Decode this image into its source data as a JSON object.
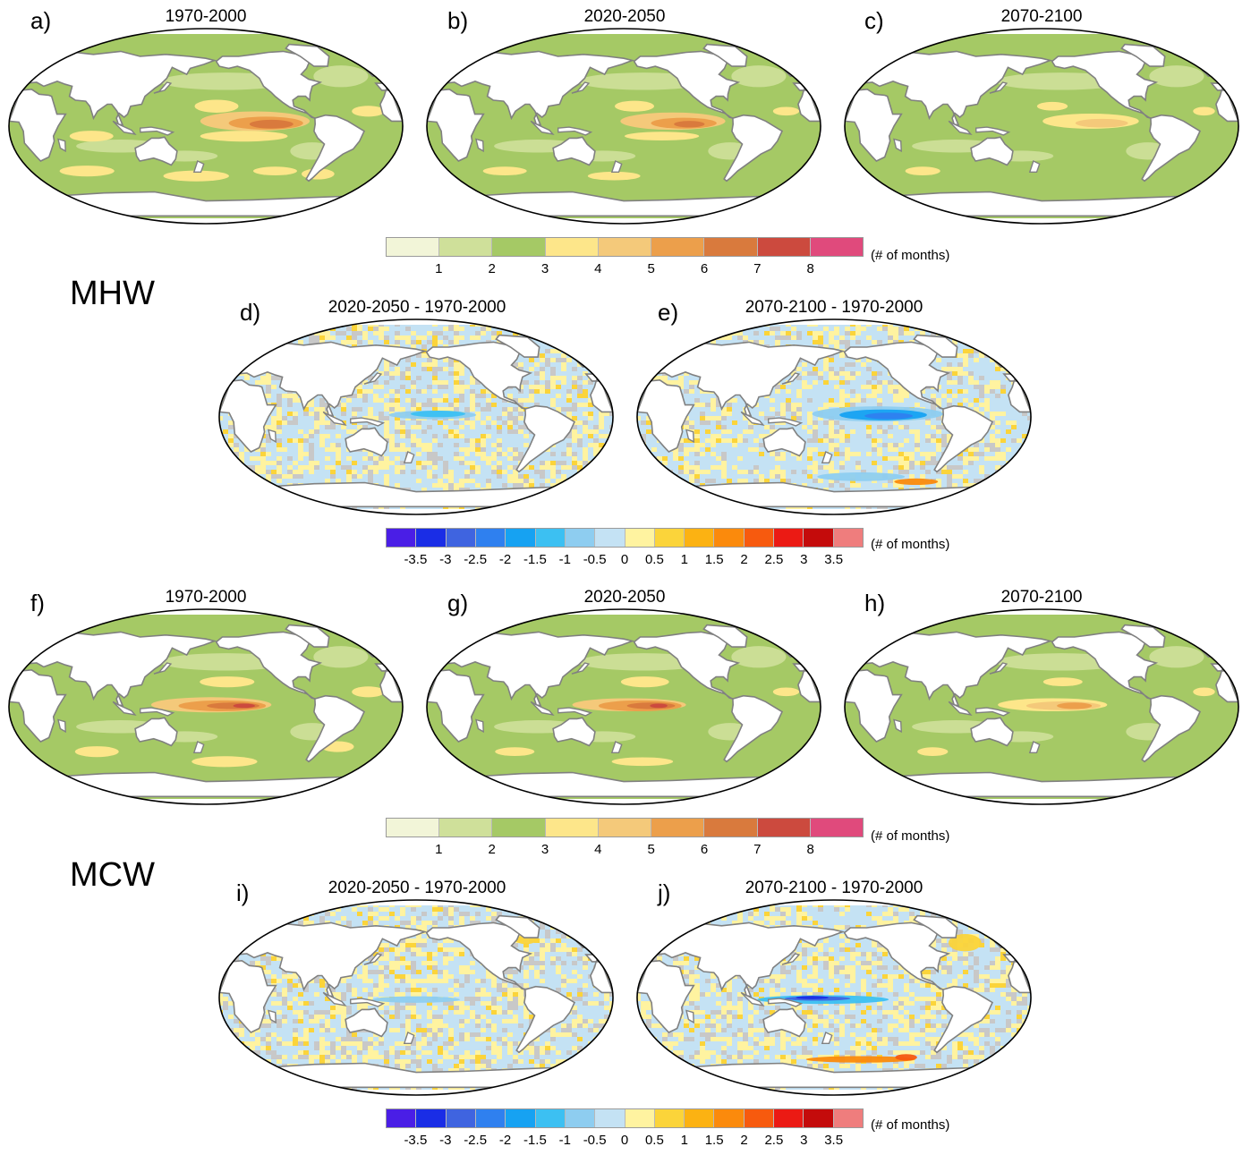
{
  "sections": {
    "mhw": "MHW",
    "mcw": "MCW"
  },
  "panels": [
    {
      "id": "a",
      "label": "a)",
      "title": "1970-2000",
      "kind": "abs"
    },
    {
      "id": "b",
      "label": "b)",
      "title": "2020-2050",
      "kind": "abs"
    },
    {
      "id": "c",
      "label": "c)",
      "title": "2070-2100",
      "kind": "abs"
    },
    {
      "id": "d",
      "label": "d)",
      "title": "2020-2050 - 1970-2000",
      "kind": "diff"
    },
    {
      "id": "e",
      "label": "e)",
      "title": "2070-2100 - 1970-2000",
      "kind": "diff"
    },
    {
      "id": "f",
      "label": "f)",
      "title": "1970-2000",
      "kind": "abs"
    },
    {
      "id": "g",
      "label": "g)",
      "title": "2020-2050",
      "kind": "abs"
    },
    {
      "id": "h",
      "label": "h)",
      "title": "2070-2100",
      "kind": "abs"
    },
    {
      "id": "i",
      "label": "i)",
      "title": "2020-2050 - 1970-2000",
      "kind": "diff"
    },
    {
      "id": "j",
      "label": "j)",
      "title": "2070-2100 - 1970-2000",
      "kind": "diff"
    }
  ],
  "colorbars": {
    "absolute": {
      "units": "(# of months)",
      "ticks": [
        "1",
        "2",
        "3",
        "4",
        "5",
        "6",
        "7",
        "8"
      ],
      "colors": [
        "#f2f5d8",
        "#cfe09a",
        "#a5c965",
        "#fde68a",
        "#f4c97a",
        "#ec9f4b",
        "#d97a3d",
        "#cc4a3e",
        "#e04a7c"
      ]
    },
    "difference": {
      "units": "(# of months)",
      "ticks": [
        "-3.5",
        "-3",
        "-2.5",
        "-2",
        "-1.5",
        "-1",
        "-0.5",
        "0",
        "0.5",
        "1",
        "1.5",
        "2",
        "2.5",
        "3",
        "3.5"
      ],
      "colors": [
        "#4a1ee6",
        "#1a2de6",
        "#3f64e0",
        "#2f80ef",
        "#16a2f2",
        "#3cc0f2",
        "#8ecdf0",
        "#c4e2f4",
        "#fff3a0",
        "#fbd43a",
        "#fcb212",
        "#fb8a0c",
        "#f75a0e",
        "#eb1a14",
        "#c40b0b",
        "#ef7d7d"
      ]
    }
  },
  "colors": {
    "land": "#ffffff",
    "coast": "#808080",
    "border": "#000000",
    "insignificant": "#c8c8c8"
  }
}
